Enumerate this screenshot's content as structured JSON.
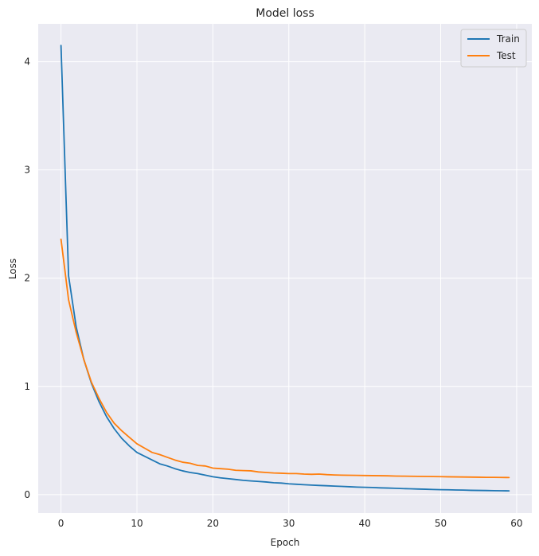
{
  "chart_data": {
    "type": "line",
    "title": "Model loss",
    "xlabel": "Epoch",
    "ylabel": "Loss",
    "xlim": [
      -3,
      62
    ],
    "ylim": [
      -0.17,
      4.35
    ],
    "xticks": [
      0,
      10,
      20,
      30,
      40,
      50,
      60
    ],
    "yticks": [
      0,
      1,
      2,
      3,
      4
    ],
    "grid": true,
    "legend_position": "top-right",
    "x": [
      0,
      1,
      2,
      3,
      4,
      5,
      6,
      7,
      8,
      9,
      10,
      11,
      12,
      13,
      14,
      15,
      16,
      17,
      18,
      19,
      20,
      21,
      22,
      23,
      24,
      25,
      26,
      27,
      28,
      29,
      30,
      31,
      32,
      33,
      34,
      35,
      36,
      37,
      38,
      39,
      40,
      41,
      42,
      43,
      44,
      45,
      46,
      47,
      48,
      49,
      50,
      51,
      52,
      53,
      54,
      55,
      56,
      57,
      58,
      59
    ],
    "series": [
      {
        "name": "Train",
        "color": "#1f77b4",
        "values": [
          4.15,
          2.02,
          1.55,
          1.25,
          1.03,
          0.86,
          0.72,
          0.61,
          0.52,
          0.45,
          0.39,
          0.355,
          0.32,
          0.285,
          0.265,
          0.24,
          0.22,
          0.205,
          0.195,
          0.18,
          0.165,
          0.155,
          0.148,
          0.14,
          0.132,
          0.127,
          0.122,
          0.117,
          0.11,
          0.107,
          0.1,
          0.096,
          0.092,
          0.088,
          0.085,
          0.082,
          0.079,
          0.076,
          0.073,
          0.07,
          0.068,
          0.066,
          0.063,
          0.061,
          0.059,
          0.056,
          0.054,
          0.052,
          0.05,
          0.048,
          0.046,
          0.045,
          0.043,
          0.042,
          0.04,
          0.039,
          0.038,
          0.037,
          0.036,
          0.035
        ]
      },
      {
        "name": "Test",
        "color": "#ff7f0e",
        "values": [
          2.36,
          1.8,
          1.5,
          1.25,
          1.04,
          0.89,
          0.76,
          0.66,
          0.59,
          0.53,
          0.47,
          0.43,
          0.39,
          0.37,
          0.345,
          0.32,
          0.3,
          0.29,
          0.27,
          0.265,
          0.245,
          0.24,
          0.235,
          0.225,
          0.222,
          0.22,
          0.21,
          0.205,
          0.2,
          0.198,
          0.195,
          0.195,
          0.19,
          0.188,
          0.19,
          0.185,
          0.182,
          0.18,
          0.179,
          0.178,
          0.177,
          0.176,
          0.175,
          0.174,
          0.172,
          0.171,
          0.17,
          0.169,
          0.168,
          0.167,
          0.166,
          0.165,
          0.164,
          0.163,
          0.162,
          0.161,
          0.16,
          0.16,
          0.159,
          0.158
        ]
      }
    ]
  }
}
